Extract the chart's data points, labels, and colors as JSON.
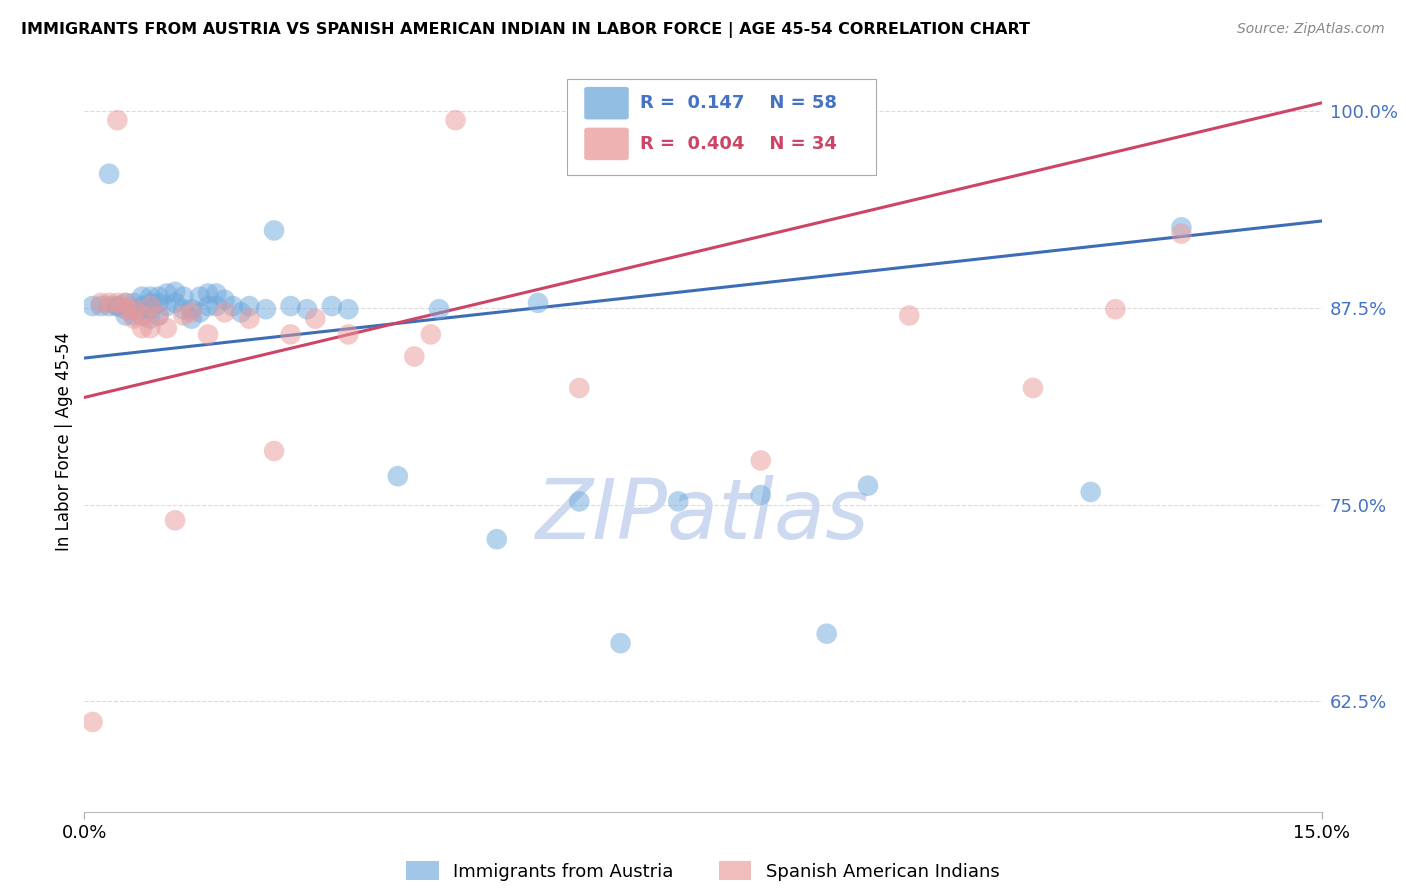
{
  "title": "IMMIGRANTS FROM AUSTRIA VS SPANISH AMERICAN INDIAN IN LABOR FORCE | AGE 45-54 CORRELATION CHART",
  "source": "Source: ZipAtlas.com",
  "ylabel": "In Labor Force | Age 45-54",
  "legend_blue_r": "0.147",
  "legend_blue_n": "58",
  "legend_pink_r": "0.404",
  "legend_pink_n": "34",
  "xmin": 0.0,
  "xmax": 0.15,
  "ymin": 0.555,
  "ymax": 1.025,
  "ytick_vals": [
    0.625,
    0.75,
    0.875,
    1.0
  ],
  "ytick_labels": [
    "62.5%",
    "75.0%",
    "87.5%",
    "100.0%"
  ],
  "xtick_vals": [
    0.0,
    0.15
  ],
  "xtick_labels": [
    "0.0%",
    "15.0%"
  ],
  "blue_color": "#6fa8dc",
  "pink_color": "#ea9999",
  "blue_line_color": "#3d6eb5",
  "pink_line_color": "#cc4466",
  "watermark_text": "ZIPatlas",
  "watermark_color": "#ccd9f0",
  "legend_label_blue": "Immigrants from Austria",
  "legend_label_pink": "Spanish American Indians",
  "blue_scatter_x": [
    0.001,
    0.002,
    0.003,
    0.003,
    0.004,
    0.004,
    0.005,
    0.005,
    0.005,
    0.006,
    0.006,
    0.006,
    0.007,
    0.007,
    0.007,
    0.008,
    0.008,
    0.008,
    0.008,
    0.009,
    0.009,
    0.009,
    0.01,
    0.01,
    0.011,
    0.011,
    0.012,
    0.012,
    0.013,
    0.013,
    0.014,
    0.014,
    0.015,
    0.015,
    0.016,
    0.016,
    0.017,
    0.018,
    0.019,
    0.02,
    0.022,
    0.023,
    0.025,
    0.027,
    0.03,
    0.032,
    0.038,
    0.043,
    0.05,
    0.055,
    0.06,
    0.065,
    0.072,
    0.082,
    0.09,
    0.095,
    0.122,
    0.133
  ],
  "blue_scatter_y": [
    0.876,
    0.876,
    0.96,
    0.876,
    0.876,
    0.876,
    0.878,
    0.874,
    0.87,
    0.878,
    0.874,
    0.87,
    0.882,
    0.876,
    0.87,
    0.882,
    0.878,
    0.874,
    0.868,
    0.882,
    0.878,
    0.87,
    0.884,
    0.876,
    0.885,
    0.878,
    0.882,
    0.874,
    0.874,
    0.868,
    0.882,
    0.872,
    0.884,
    0.876,
    0.884,
    0.876,
    0.88,
    0.876,
    0.872,
    0.876,
    0.874,
    0.924,
    0.876,
    0.874,
    0.876,
    0.874,
    0.768,
    0.874,
    0.728,
    0.878,
    0.752,
    0.662,
    0.752,
    0.756,
    0.668,
    0.762,
    0.758,
    0.926
  ],
  "pink_scatter_x": [
    0.001,
    0.002,
    0.003,
    0.004,
    0.004,
    0.005,
    0.005,
    0.006,
    0.006,
    0.007,
    0.007,
    0.008,
    0.008,
    0.009,
    0.01,
    0.011,
    0.012,
    0.013,
    0.015,
    0.017,
    0.02,
    0.023,
    0.025,
    0.028,
    0.032,
    0.04,
    0.042,
    0.045,
    0.06,
    0.082,
    0.1,
    0.115,
    0.125,
    0.133
  ],
  "pink_scatter_y": [
    0.612,
    0.878,
    0.878,
    0.994,
    0.878,
    0.874,
    0.878,
    0.874,
    0.868,
    0.87,
    0.862,
    0.876,
    0.862,
    0.87,
    0.862,
    0.74,
    0.87,
    0.872,
    0.858,
    0.872,
    0.868,
    0.784,
    0.858,
    0.868,
    0.858,
    0.844,
    0.858,
    0.994,
    0.824,
    0.778,
    0.87,
    0.824,
    0.874,
    0.922
  ],
  "blue_line_x0": 0.0,
  "blue_line_x1": 0.15,
  "blue_line_y0": 0.843,
  "blue_line_y1": 0.93,
  "pink_line_x0": 0.0,
  "pink_line_x1": 0.15,
  "pink_line_y0": 0.818,
  "pink_line_y1": 1.005,
  "background_color": "#ffffff",
  "grid_color": "#cccccc"
}
